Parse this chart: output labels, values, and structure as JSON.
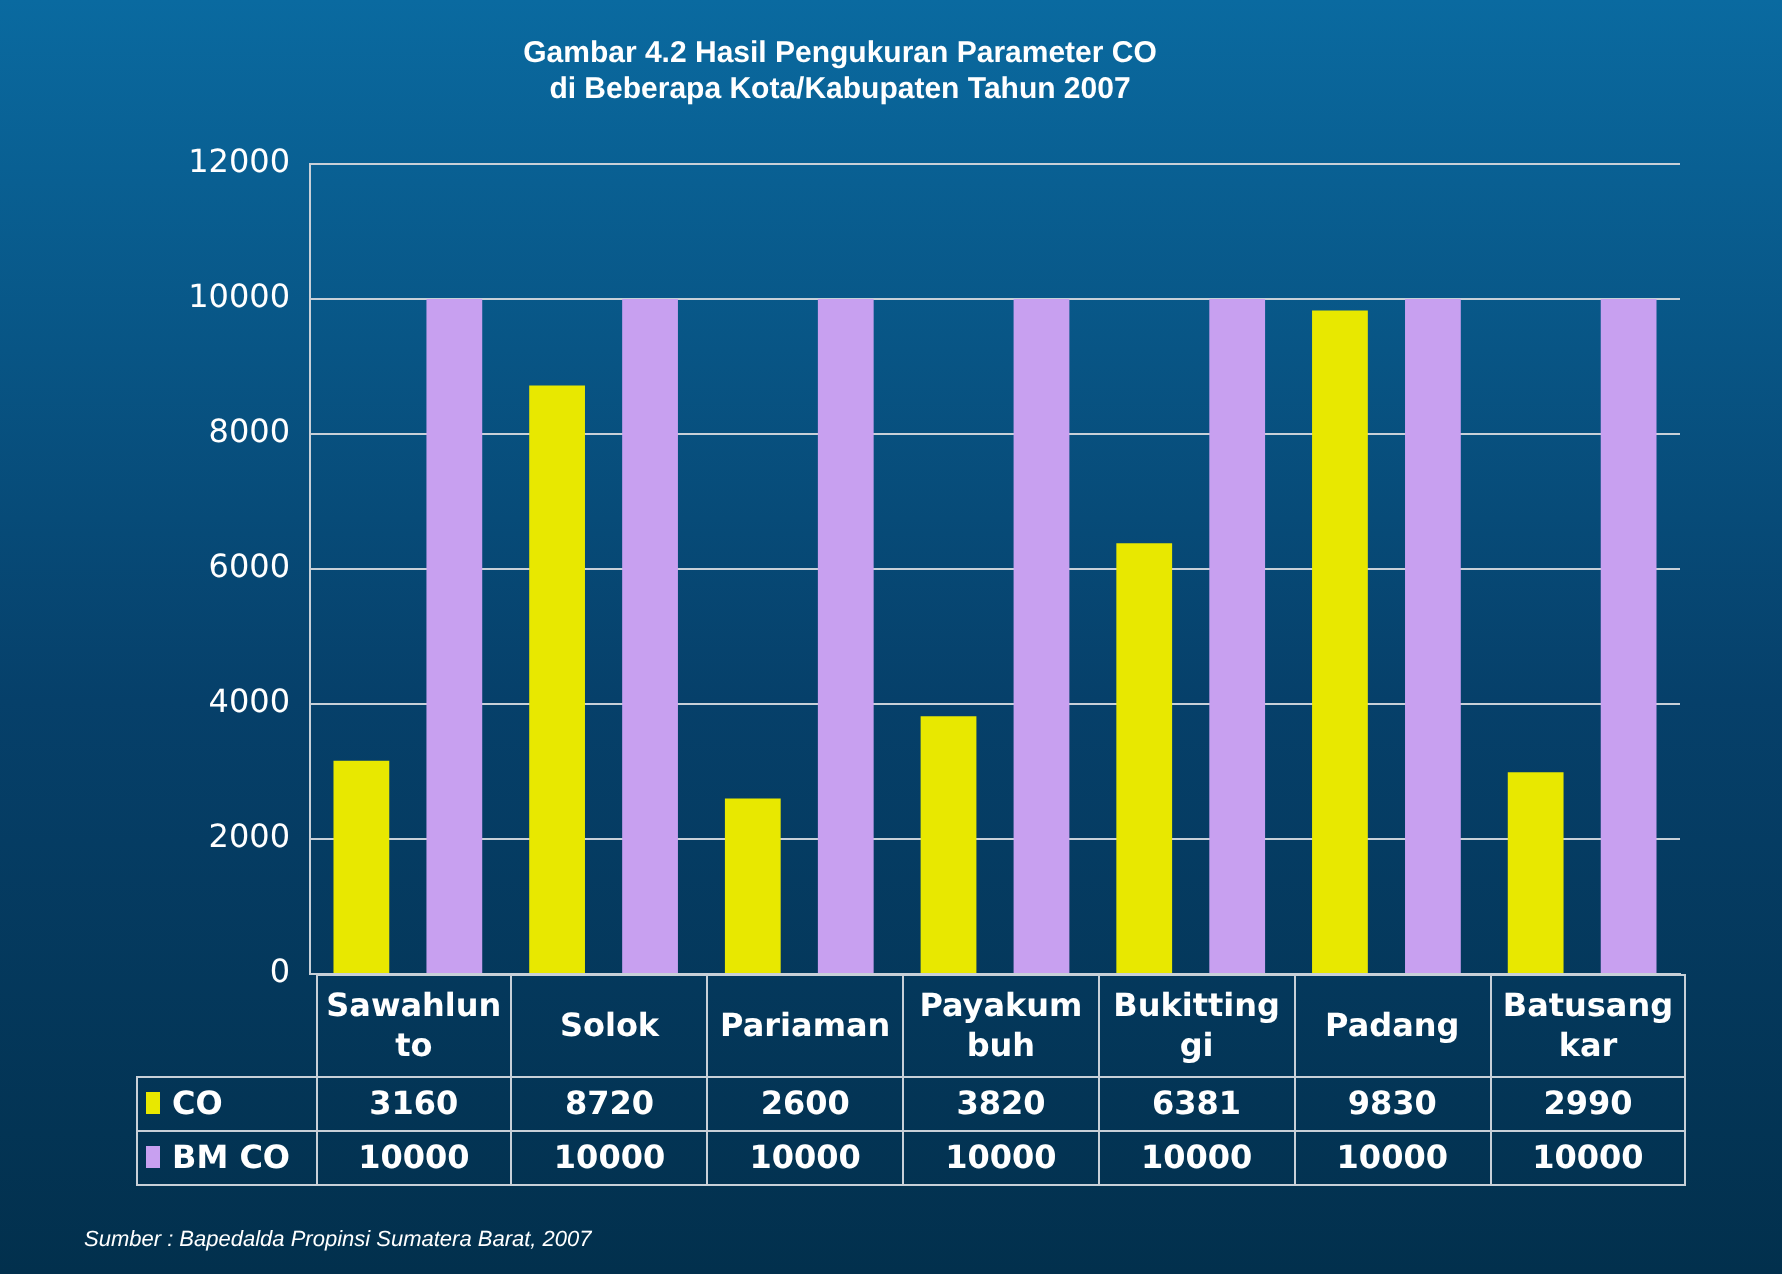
{
  "chart_data": {
    "type": "bar",
    "title": [
      "Gambar 4.2 Hasil Pengukuran Parameter CO",
      "di Beberapa Kota/Kabupaten Tahun 2007"
    ],
    "categories": [
      "Sawahlunto",
      "Solok",
      "Pariaman",
      "Payakumbuh",
      "Bukittinggi",
      "Padang",
      "Batusangkar"
    ],
    "series": [
      {
        "name": "CO",
        "color": "#e8e800",
        "values": [
          3160,
          8720,
          2600,
          3820,
          6381,
          9830,
          2990
        ]
      },
      {
        "name": "BM CO",
        "color": "#c8a0f0",
        "values": [
          10000,
          10000,
          10000,
          10000,
          10000,
          10000,
          10000
        ]
      }
    ],
    "ylim": [
      0,
      12000
    ],
    "yticks": [
      0,
      2000,
      4000,
      6000,
      8000,
      10000,
      12000
    ],
    "grid": "y",
    "legend": "bottom",
    "data_labels": true,
    "annotations": [
      "Sumber : Bapedalda Propinsi Sumatera Barat, 2007"
    ]
  }
}
